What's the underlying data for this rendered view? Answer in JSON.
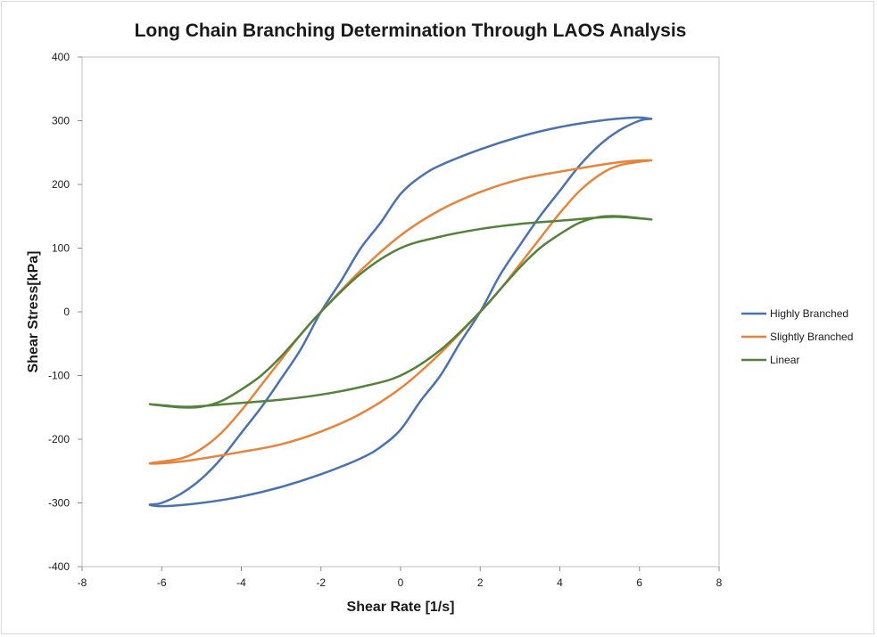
{
  "chart_data": {
    "type": "line",
    "title": "Long Chain Branching Determination Through LAOS Analysis",
    "xlabel": "Shear Rate [1/s]",
    "ylabel": "Shear Stress[kPa]",
    "xlim": [
      -8,
      8
    ],
    "ylim": [
      -400,
      400
    ],
    "xticks": [
      "-8",
      "-6",
      "-4",
      "-2",
      "0",
      "2",
      "4",
      "6",
      "8"
    ],
    "yticks": [
      "400",
      "300",
      "200",
      "100",
      "0",
      "-100",
      "-200",
      "-300",
      "-400"
    ],
    "grid": false,
    "legend_position": "right",
    "series": [
      {
        "name": "Highly Branched",
        "color": "#4a72b0",
        "points": [
          [
            6.3,
            303
          ],
          [
            5.9,
            305
          ],
          [
            5.0,
            300
          ],
          [
            4.0,
            290
          ],
          [
            3.0,
            275
          ],
          [
            2.0,
            255
          ],
          [
            1.0,
            230
          ],
          [
            0.5,
            212
          ],
          [
            0.0,
            185
          ],
          [
            -0.5,
            140
          ],
          [
            -1.0,
            100
          ],
          [
            -1.5,
            48
          ],
          [
            -2.0,
            0
          ],
          [
            -2.5,
            -58
          ],
          [
            -3.0,
            -105
          ],
          [
            -3.5,
            -150
          ],
          [
            -4.0,
            -190
          ],
          [
            -4.5,
            -230
          ],
          [
            -5.0,
            -262
          ],
          [
            -5.5,
            -285
          ],
          [
            -6.0,
            -300
          ],
          [
            -6.3,
            -303
          ],
          [
            -5.9,
            -305
          ],
          [
            -5.0,
            -300
          ],
          [
            -4.0,
            -290
          ],
          [
            -3.0,
            -275
          ],
          [
            -2.0,
            -255
          ],
          [
            -1.0,
            -230
          ],
          [
            -0.5,
            -212
          ],
          [
            0.0,
            -185
          ],
          [
            0.5,
            -140
          ],
          [
            1.0,
            -100
          ],
          [
            1.5,
            -48
          ],
          [
            2.0,
            0
          ],
          [
            2.5,
            58
          ],
          [
            3.0,
            105
          ],
          [
            3.5,
            150
          ],
          [
            4.0,
            190
          ],
          [
            4.5,
            230
          ],
          [
            5.0,
            262
          ],
          [
            5.5,
            285
          ],
          [
            6.0,
            300
          ],
          [
            6.3,
            303
          ]
        ]
      },
      {
        "name": "Slightly Branched",
        "color": "#e8843a",
        "points": [
          [
            6.3,
            238
          ],
          [
            5.5,
            235
          ],
          [
            4.0,
            220
          ],
          [
            3.0,
            208
          ],
          [
            2.0,
            188
          ],
          [
            1.0,
            160
          ],
          [
            0.0,
            120
          ],
          [
            -1.0,
            65
          ],
          [
            -2.0,
            0
          ],
          [
            -2.5,
            -35
          ],
          [
            -3.0,
            -75
          ],
          [
            -3.5,
            -115
          ],
          [
            -4.0,
            -155
          ],
          [
            -4.5,
            -190
          ],
          [
            -5.0,
            -215
          ],
          [
            -5.5,
            -230
          ],
          [
            -6.3,
            -238
          ],
          [
            -5.5,
            -235
          ],
          [
            -4.0,
            -220
          ],
          [
            -3.0,
            -208
          ],
          [
            -2.0,
            -188
          ],
          [
            -1.0,
            -160
          ],
          [
            0.0,
            -120
          ],
          [
            1.0,
            -65
          ],
          [
            2.0,
            0
          ],
          [
            2.5,
            35
          ],
          [
            3.0,
            75
          ],
          [
            3.5,
            115
          ],
          [
            4.0,
            155
          ],
          [
            4.5,
            190
          ],
          [
            5.0,
            215
          ],
          [
            5.5,
            230
          ],
          [
            6.3,
            238
          ]
        ]
      },
      {
        "name": "Linear",
        "color": "#54823a",
        "points": [
          [
            6.3,
            145
          ],
          [
            5.5,
            149
          ],
          [
            5.0,
            148
          ],
          [
            4.0,
            143
          ],
          [
            3.0,
            138
          ],
          [
            2.0,
            130
          ],
          [
            1.0,
            118
          ],
          [
            0.0,
            100
          ],
          [
            -1.0,
            60
          ],
          [
            -2.0,
            0
          ],
          [
            -2.5,
            -35
          ],
          [
            -3.0,
            -70
          ],
          [
            -3.5,
            -100
          ],
          [
            -4.0,
            -122
          ],
          [
            -4.5,
            -140
          ],
          [
            -5.0,
            -149
          ],
          [
            -5.5,
            -150
          ],
          [
            -6.3,
            -145
          ],
          [
            -5.5,
            -149
          ],
          [
            -5.0,
            -148
          ],
          [
            -4.0,
            -143
          ],
          [
            -3.0,
            -138
          ],
          [
            -2.0,
            -130
          ],
          [
            -1.0,
            -118
          ],
          [
            0.0,
            -100
          ],
          [
            1.0,
            -60
          ],
          [
            2.0,
            0
          ],
          [
            2.5,
            35
          ],
          [
            3.0,
            70
          ],
          [
            3.5,
            100
          ],
          [
            4.0,
            122
          ],
          [
            4.5,
            140
          ],
          [
            5.0,
            149
          ],
          [
            5.5,
            150
          ],
          [
            6.3,
            145
          ]
        ]
      }
    ]
  }
}
